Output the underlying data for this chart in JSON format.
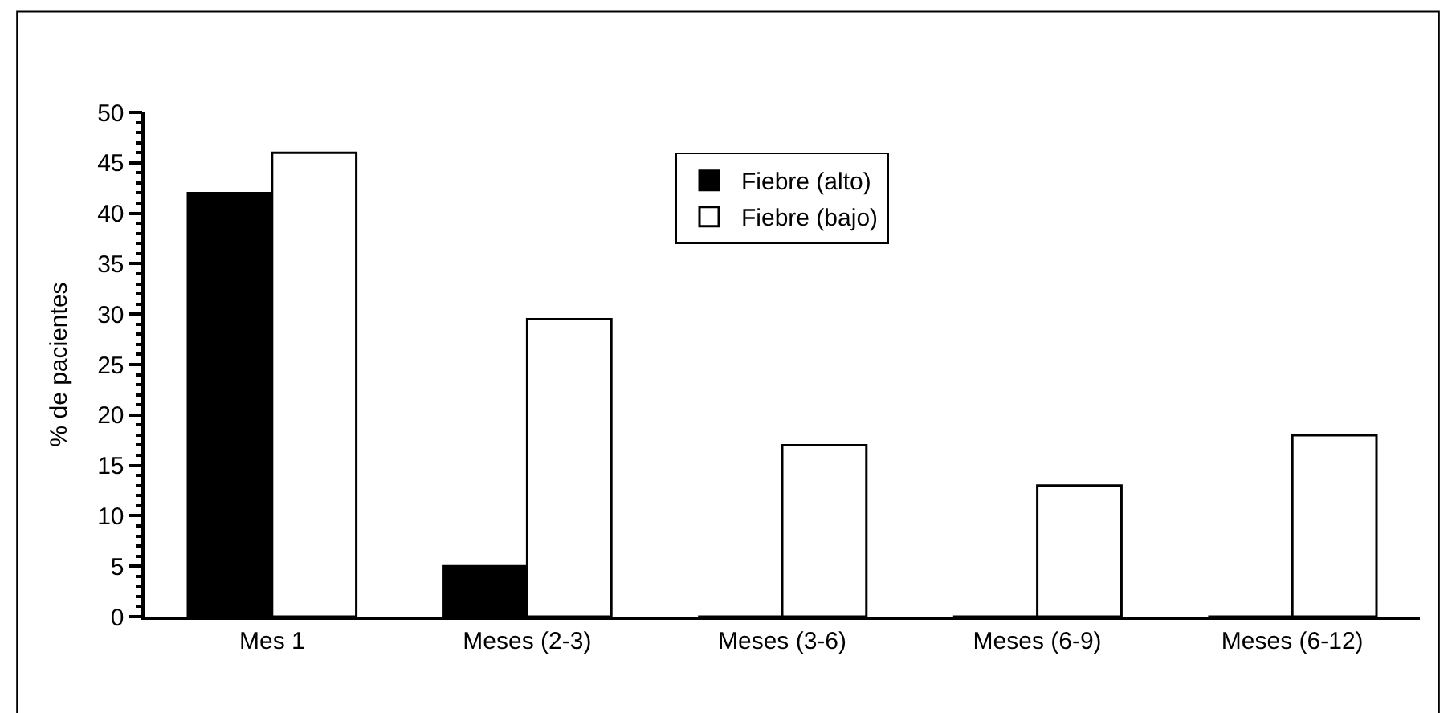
{
  "chart_data": {
    "type": "bar",
    "ylabel": "% de pacientes",
    "categories": [
      "Mes 1",
      "Meses (2-3)",
      "Meses (3-6)",
      "Meses (6-9)",
      "Meses (6-12)"
    ],
    "series": [
      {
        "name": "Fiebre (alto)",
        "color": "#000000",
        "values": [
          42,
          5,
          0,
          0,
          0
        ]
      },
      {
        "name": "Fiebre (bajo)",
        "color": "#ffffff",
        "values": [
          46,
          29.5,
          17,
          13,
          18
        ]
      }
    ],
    "ylim": [
      0,
      50
    ],
    "yticks": [
      0,
      5,
      10,
      15,
      20,
      25,
      30,
      35,
      40,
      45,
      50
    ],
    "legend": "top"
  }
}
